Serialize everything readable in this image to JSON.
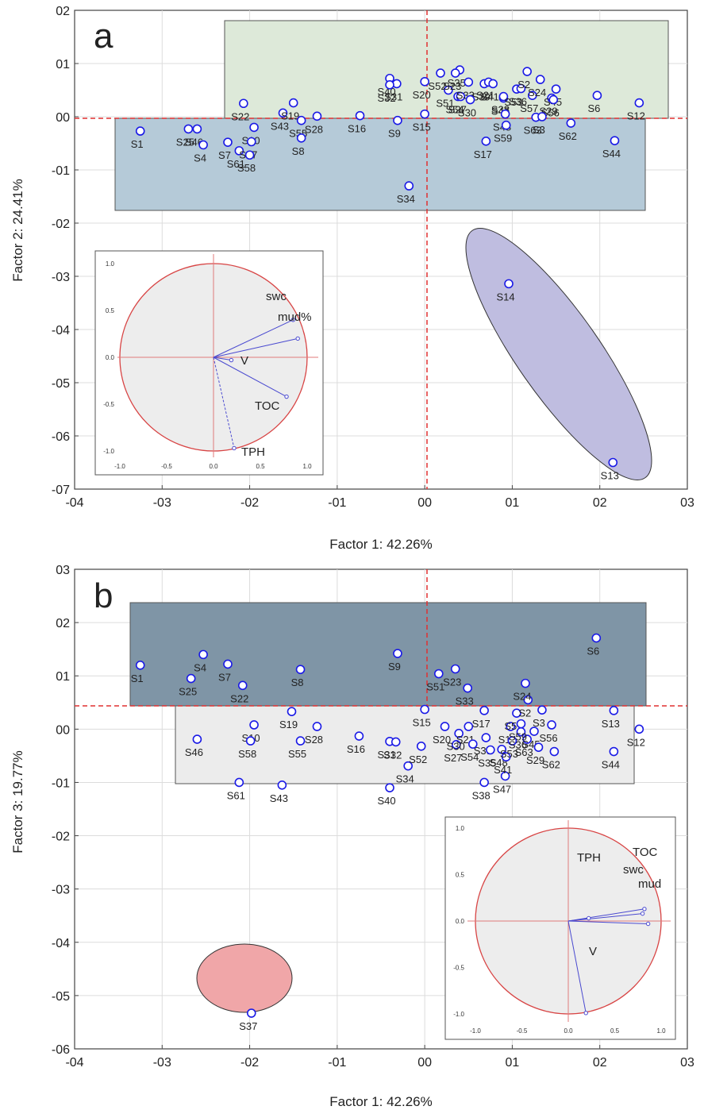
{
  "panels": [
    {
      "letter": "a",
      "xlabel": "Factor 1: 42.26%",
      "ylabel": "Factor 2: 24.41%",
      "xticks": [
        "-04",
        "-03",
        "-02",
        "-01",
        "00",
        "01",
        "02",
        "03"
      ],
      "yticks": [
        "02",
        "01",
        "00",
        "-01",
        "-02",
        "-03",
        "-04",
        "-05",
        "-06",
        "-07"
      ],
      "points": [
        {
          "label": "S1",
          "x": -3.25,
          "y": -0.27
        },
        {
          "label": "S25",
          "x": -2.7,
          "y": -0.23
        },
        {
          "label": "S46",
          "x": -2.6,
          "y": -0.23
        },
        {
          "label": "S4",
          "x": -2.53,
          "y": -0.53
        },
        {
          "label": "S7",
          "x": -2.25,
          "y": -0.48
        },
        {
          "label": "S61",
          "x": -2.12,
          "y": -0.64
        },
        {
          "label": "S22",
          "x": -2.07,
          "y": 0.25
        },
        {
          "label": "S10",
          "x": -1.95,
          "y": -0.2
        },
        {
          "label": "S37",
          "x": -1.98,
          "y": -0.47
        },
        {
          "label": "S58",
          "x": -2.0,
          "y": -0.72
        },
        {
          "label": "S43",
          "x": -1.62,
          "y": 0.07
        },
        {
          "label": "S19",
          "x": -1.5,
          "y": 0.26
        },
        {
          "label": "S55",
          "x": -1.41,
          "y": -0.07
        },
        {
          "label": "S8",
          "x": -1.41,
          "y": -0.4
        },
        {
          "label": "S28",
          "x": -1.23,
          "y": 0.01
        },
        {
          "label": "S16",
          "x": -0.74,
          "y": 0.02
        },
        {
          "label": "S40",
          "x": -0.4,
          "y": 0.72
        },
        {
          "label": "S31",
          "x": -0.32,
          "y": 0.62
        },
        {
          "label": "S32",
          "x": -0.4,
          "y": 0.6
        },
        {
          "label": "S9",
          "x": -0.31,
          "y": -0.07
        },
        {
          "label": "S34",
          "x": -0.18,
          "y": -1.3
        },
        {
          "label": "S52",
          "x": 0.18,
          "y": 0.82
        },
        {
          "label": "S20",
          "x": 0.0,
          "y": 0.66
        },
        {
          "label": "S15",
          "x": 0.0,
          "y": 0.05
        },
        {
          "label": "S51",
          "x": 0.27,
          "y": 0.5
        },
        {
          "label": "S54",
          "x": 0.38,
          "y": 0.38
        },
        {
          "label": "S27",
          "x": 0.41,
          "y": 0.38
        },
        {
          "label": "S35",
          "x": 0.4,
          "y": 0.88
        },
        {
          "label": "S23",
          "x": 0.35,
          "y": 0.82
        },
        {
          "label": "S33",
          "x": 0.5,
          "y": 0.65
        },
        {
          "label": "S39",
          "x": 0.68,
          "y": 0.62
        },
        {
          "label": "S21",
          "x": 0.73,
          "y": 0.65
        },
        {
          "label": "S41",
          "x": 0.78,
          "y": 0.62
        },
        {
          "label": "S30",
          "x": 0.52,
          "y": 0.32
        },
        {
          "label": "S47",
          "x": 0.9,
          "y": 0.35
        },
        {
          "label": "S38",
          "x": 0.9,
          "y": 0.38
        },
        {
          "label": "S53",
          "x": 1.05,
          "y": 0.52
        },
        {
          "label": "S36",
          "x": 1.1,
          "y": 0.53
        },
        {
          "label": "S2",
          "x": 1.17,
          "y": 0.85
        },
        {
          "label": "S48",
          "x": 0.92,
          "y": 0.05
        },
        {
          "label": "S57",
          "x": 1.23,
          "y": 0.4
        },
        {
          "label": "S24",
          "x": 1.32,
          "y": 0.7
        },
        {
          "label": "S29",
          "x": 1.45,
          "y": 0.35
        },
        {
          "label": "S45",
          "x": 1.5,
          "y": 0.52
        },
        {
          "label": "S56",
          "x": 1.47,
          "y": 0.32
        },
        {
          "label": "S63",
          "x": 1.27,
          "y": -0.01
        },
        {
          "label": "S3",
          "x": 1.34,
          "y": 0.0
        },
        {
          "label": "S59",
          "x": 0.93,
          "y": -0.16
        },
        {
          "label": "S17",
          "x": 0.7,
          "y": -0.46
        },
        {
          "label": "S62",
          "x": 1.67,
          "y": -0.12
        },
        {
          "label": "S6",
          "x": 1.97,
          "y": 0.4
        },
        {
          "label": "S12",
          "x": 2.45,
          "y": 0.26
        },
        {
          "label": "S44",
          "x": 2.17,
          "y": -0.45
        },
        {
          "label": "S14",
          "x": 0.96,
          "y": -3.14
        },
        {
          "label": "S13",
          "x": 2.15,
          "y": -6.5
        }
      ],
      "inset": {
        "xticks": [
          "-1.0",
          "-0.5",
          "0.0",
          "0.5",
          "1.0"
        ],
        "yticks": [
          "1.0",
          "0.5",
          "0.0",
          "-0.5",
          "-1.0"
        ],
        "vectors": [
          {
            "label": "swc",
            "x": 0.85,
            "y": 0.4,
            "dashed": false
          },
          {
            "label": "mud%",
            "x": 0.9,
            "y": 0.2,
            "dashed": false
          },
          {
            "label": "V",
            "x": 0.19,
            "y": -0.03,
            "dashed": false
          },
          {
            "label": "TOC",
            "x": 0.78,
            "y": -0.42,
            "dashed": false
          },
          {
            "label": "TPH",
            "x": 0.22,
            "y": -0.97,
            "dashed": true
          }
        ]
      }
    },
    {
      "letter": "b",
      "xlabel": "Factor 1: 42.26%",
      "ylabel": "Factor 3: 19.77%",
      "xticks": [
        "-04",
        "-03",
        "-02",
        "-01",
        "00",
        "01",
        "02",
        "03"
      ],
      "yticks": [
        "03",
        "02",
        "01",
        "00",
        "-01",
        "-02",
        "-03",
        "-04",
        "-05",
        "-06"
      ],
      "points": [
        {
          "label": "S1",
          "x": -3.25,
          "y": 1.2
        },
        {
          "label": "S25",
          "x": -2.67,
          "y": 0.95
        },
        {
          "label": "S4",
          "x": -2.53,
          "y": 1.4
        },
        {
          "label": "S7",
          "x": -2.25,
          "y": 1.22
        },
        {
          "label": "S22",
          "x": -2.08,
          "y": 0.82
        },
        {
          "label": "S8",
          "x": -1.42,
          "y": 1.12
        },
        {
          "label": "S19",
          "x": -1.52,
          "y": 0.33
        },
        {
          "label": "S10",
          "x": -1.95,
          "y": 0.08
        },
        {
          "label": "S28",
          "x": -1.23,
          "y": 0.05
        },
        {
          "label": "S46",
          "x": -2.6,
          "y": -0.19
        },
        {
          "label": "S58",
          "x": -1.99,
          "y": -0.22
        },
        {
          "label": "S55",
          "x": -1.42,
          "y": -0.22
        },
        {
          "label": "S61",
          "x": -2.12,
          "y": -1.0
        },
        {
          "label": "S43",
          "x": -1.63,
          "y": -1.05
        },
        {
          "label": "S16",
          "x": -0.75,
          "y": -0.13
        },
        {
          "label": "S31",
          "x": -0.4,
          "y": -0.23
        },
        {
          "label": "S32",
          "x": -0.33,
          "y": -0.24
        },
        {
          "label": "S34",
          "x": -0.19,
          "y": -0.69
        },
        {
          "label": "S40",
          "x": -0.4,
          "y": -1.1
        },
        {
          "label": "S9",
          "x": -0.31,
          "y": 1.42
        },
        {
          "label": "S15",
          "x": 0.0,
          "y": 0.37
        },
        {
          "label": "S51",
          "x": 0.16,
          "y": 1.04
        },
        {
          "label": "S23",
          "x": 0.35,
          "y": 1.13
        },
        {
          "label": "S33",
          "x": 0.49,
          "y": 0.77
        },
        {
          "label": "S20",
          "x": 0.23,
          "y": 0.05
        },
        {
          "label": "S52",
          "x": -0.04,
          "y": -0.32
        },
        {
          "label": "S27",
          "x": 0.36,
          "y": -0.29
        },
        {
          "label": "S30",
          "x": 0.39,
          "y": -0.08
        },
        {
          "label": "S21",
          "x": 0.5,
          "y": 0.05
        },
        {
          "label": "S39",
          "x": 0.7,
          "y": -0.16
        },
        {
          "label": "S35",
          "x": 0.75,
          "y": -0.39
        },
        {
          "label": "S54",
          "x": 0.55,
          "y": -0.28
        },
        {
          "label": "S17",
          "x": 0.68,
          "y": 0.35
        },
        {
          "label": "S38",
          "x": 0.68,
          "y": -1.0
        },
        {
          "label": "S48",
          "x": 0.88,
          "y": -0.38
        },
        {
          "label": "S47",
          "x": 0.92,
          "y": -0.88
        },
        {
          "label": "S41",
          "x": 0.93,
          "y": -0.52
        },
        {
          "label": "S14",
          "x": 0.98,
          "y": 0.05
        },
        {
          "label": "S53",
          "x": 1.0,
          "y": -0.22
        },
        {
          "label": "S57",
          "x": 1.05,
          "y": 0.3
        },
        {
          "label": "S36",
          "x": 1.1,
          "y": -0.05
        },
        {
          "label": "S63",
          "x": 1.17,
          "y": -0.19
        },
        {
          "label": "S2",
          "x": 1.18,
          "y": 0.55
        },
        {
          "label": "S24",
          "x": 1.15,
          "y": 0.86
        },
        {
          "label": "S3",
          "x": 1.34,
          "y": 0.36
        },
        {
          "label": "S45",
          "x": 1.25,
          "y": -0.04
        },
        {
          "label": "S29",
          "x": 1.3,
          "y": -0.34
        },
        {
          "label": "S56",
          "x": 1.45,
          "y": 0.08
        },
        {
          "label": "S62",
          "x": 1.48,
          "y": -0.42
        },
        {
          "label": "S6",
          "x": 1.96,
          "y": 1.71
        },
        {
          "label": "S13",
          "x": 2.16,
          "y": 0.35
        },
        {
          "label": "S12",
          "x": 2.45,
          "y": 0.0
        },
        {
          "label": "S44",
          "x": 2.16,
          "y": -0.42
        },
        {
          "label": "S59",
          "x": 1.1,
          "y": 0.1
        },
        {
          "label": "S37",
          "x": -1.98,
          "y": -5.33
        }
      ],
      "inset": {
        "xticks": [
          "-1.0",
          "-0.5",
          "0.0",
          "0.5",
          "1.0"
        ],
        "yticks": [
          "1.0",
          "0.5",
          "0.0",
          "-0.5",
          "-1.0"
        ],
        "vectors": [
          {
            "label": "TOC",
            "x": 0.82,
            "y": 0.13,
            "dashed": false
          },
          {
            "label": "swc",
            "x": 0.8,
            "y": 0.08,
            "dashed": false
          },
          {
            "label": "mud",
            "x": 0.86,
            "y": -0.03,
            "dashed": false
          },
          {
            "label": "TPH",
            "x": 0.22,
            "y": 0.03,
            "dashed": false
          },
          {
            "label": "V",
            "x": 0.19,
            "y": -0.99,
            "dashed": false
          }
        ]
      }
    }
  ],
  "chart_data": [
    {
      "type": "scatter",
      "panel": "a",
      "xlabel": "Factor 1: 42.26%",
      "ylabel": "Factor 2: 24.41%",
      "xlim": [
        -4,
        3
      ],
      "ylim": [
        -7,
        2
      ],
      "grid": true
    },
    {
      "type": "scatter",
      "panel": "b",
      "xlabel": "Factor 1: 42.26%",
      "ylabel": "Factor 3: 19.77%",
      "xlim": [
        -4,
        3
      ],
      "ylim": [
        -6,
        3
      ],
      "grid": true
    }
  ],
  "colors": {
    "point": "#1a1ae6",
    "dashed_axis": "#e03030",
    "box_green": "#dde9d9",
    "box_blue": "#b5cad8",
    "box_dark": "#7f95a6",
    "box_light": "#ececec",
    "ellipse_purple": "#bfbde0",
    "ellipse_red": "#f0a6a8",
    "circle_red": "#d84444"
  }
}
